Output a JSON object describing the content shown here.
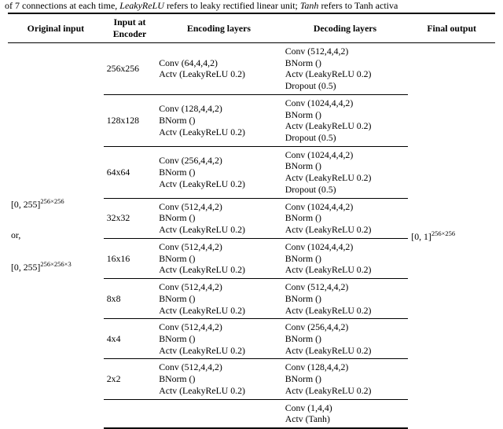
{
  "caption": {
    "prefix": "of 7 connections at each time, ",
    "i1": "LeakyReLU",
    "mid1": " refers to leaky rectified linear unit; ",
    "i2": "Tanh",
    "mid2": " refers to Tanh activa"
  },
  "headers": {
    "orig": "Original input",
    "in1": "Input at",
    "in2": "Encoder",
    "enc": "Encoding layers",
    "dec": "Decoding layers",
    "out": "Final output"
  },
  "original": {
    "a": "[0, 255]",
    "a_exp": "256×256",
    "or": "or,",
    "b": "[0, 255]",
    "b_exp": "256×256×3"
  },
  "final": {
    "v": "[0, 1]",
    "v_exp": "256×256"
  },
  "rows": [
    {
      "in": "256x256",
      "enc": [
        "Conv (64,4,4,2)",
        "Actv (LeakyReLU 0.2)"
      ],
      "dec": [
        "Conv (512,4,4,2)",
        "BNorm ()",
        "Actv (LeakyReLU 0.2)",
        "Dropout (0.5)"
      ]
    },
    {
      "in": "128x128",
      "enc": [
        "Conv (128,4,4,2)",
        "BNorm ()",
        "Actv (LeakyReLU 0.2)"
      ],
      "dec": [
        "Conv (1024,4,4,2)",
        "BNorm ()",
        "Actv (LeakyReLU 0.2)",
        "Dropout (0.5)"
      ]
    },
    {
      "in": "64x64",
      "enc": [
        "Conv (256,4,4,2)",
        "BNorm ()",
        "Actv (LeakyReLU 0.2)"
      ],
      "dec": [
        "Conv (1024,4,4,2)",
        "BNorm ()",
        "Actv (LeakyReLU 0.2)",
        "Dropout (0.5)"
      ]
    },
    {
      "in": "32x32",
      "enc": [
        "Conv (512,4,4,2)",
        "BNorm ()",
        "Actv (LeakyReLU 0.2)"
      ],
      "dec": [
        "Conv (1024,4,4,2)",
        "BNorm ()",
        "Actv (LeakyReLU 0.2)"
      ]
    },
    {
      "in": "16x16",
      "enc": [
        "Conv (512,4,4,2)",
        "BNorm ()",
        "Actv (LeakyReLU 0.2)"
      ],
      "dec": [
        "Conv (1024,4,4,2)",
        "BNorm ()",
        "Actv (LeakyReLU 0.2)"
      ]
    },
    {
      "in": "8x8",
      "enc": [
        "Conv (512,4,4,2)",
        "BNorm ()",
        "Actv (LeakyReLU 0.2)"
      ],
      "dec": [
        "Conv (512,4,4,2)",
        "BNorm ()",
        "Actv (LeakyReLU 0.2)"
      ]
    },
    {
      "in": "4x4",
      "enc": [
        "Conv (512,4,4,2)",
        "BNorm ()",
        "Actv (LeakyReLU 0.2)"
      ],
      "dec": [
        "Conv (256,4,4,2)",
        "BNorm ()",
        "Actv (LeakyReLU 0.2)"
      ]
    },
    {
      "in": "2x2",
      "enc": [
        "Conv (512,4,4,2)",
        "BNorm ()",
        "Actv (LeakyReLU 0.2)"
      ],
      "dec": [
        "Conv (128,4,4,2)",
        "BNorm ()",
        "Actv (LeakyReLU 0.2)"
      ]
    }
  ],
  "tail": {
    "dec": [
      "Conv (1,4,4)",
      "Actv (Tanh)"
    ]
  }
}
